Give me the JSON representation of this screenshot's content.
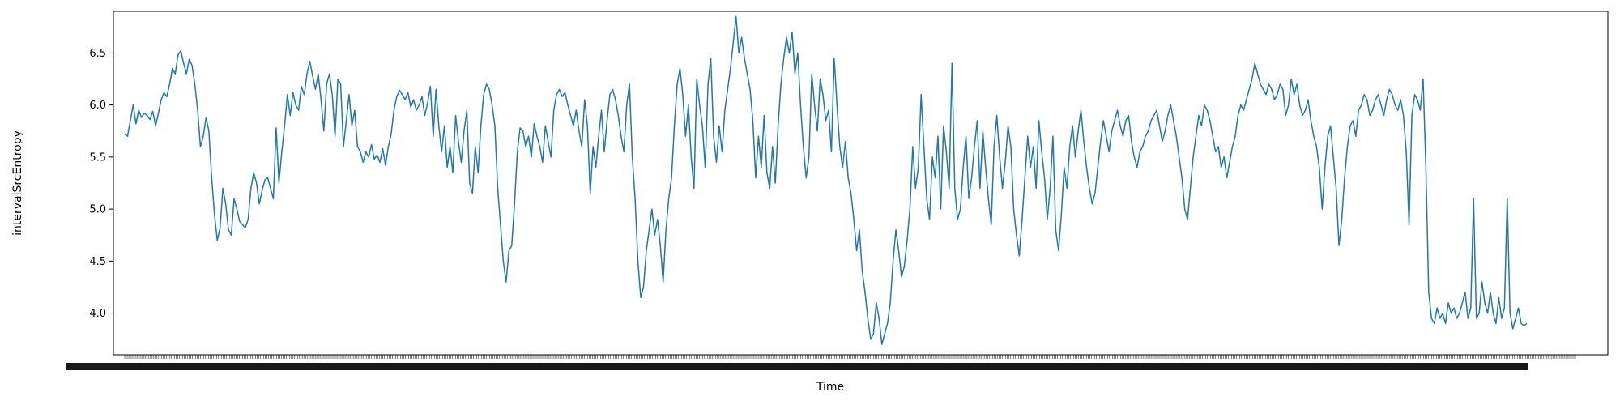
{
  "chart_data": {
    "type": "line",
    "title": "",
    "xlabel": "Time",
    "ylabel": "intervalSrcEntropy",
    "ylim": [
      3.6,
      6.9
    ],
    "yticks": [
      4.0,
      4.5,
      5.0,
      5.5,
      6.0,
      6.5
    ],
    "ytick_labels": [
      "4.0",
      "4.5",
      "5.0",
      "5.5",
      "6.0",
      "6.5"
    ],
    "x_tick_count": 900,
    "grid": false,
    "legend": "none",
    "series_color": "#1f77b4",
    "series": [
      {
        "values": [
          5.72,
          5.7,
          5.85,
          6.0,
          5.82,
          5.95,
          5.88,
          5.92,
          5.9,
          5.86,
          5.94,
          5.8,
          5.92,
          6.05,
          6.12,
          6.08,
          6.2,
          6.35,
          6.3,
          6.48,
          6.52,
          6.4,
          6.3,
          6.44,
          6.38,
          6.2,
          5.95,
          5.6,
          5.7,
          5.88,
          5.75,
          5.3,
          4.95,
          4.7,
          4.82,
          5.2,
          5.05,
          4.8,
          4.75,
          5.1,
          5.0,
          4.88,
          4.85,
          4.82,
          4.9,
          5.2,
          5.35,
          5.25,
          5.05,
          5.18,
          5.28,
          5.3,
          5.2,
          5.1,
          5.78,
          5.25,
          5.55,
          5.8,
          6.1,
          5.9,
          6.12,
          6.0,
          5.95,
          6.18,
          6.1,
          6.3,
          6.42,
          6.28,
          6.15,
          6.3,
          6.05,
          5.75,
          6.2,
          6.3,
          6.1,
          5.7,
          6.25,
          6.2,
          5.6,
          5.85,
          6.1,
          5.8,
          5.95,
          5.6,
          5.55,
          5.45,
          5.55,
          5.5,
          5.62,
          5.48,
          5.52,
          5.45,
          5.58,
          5.42,
          5.6,
          5.72,
          5.95,
          6.08,
          6.14,
          6.1,
          6.05,
          6.12,
          5.98,
          6.05,
          5.95,
          6.0,
          6.08,
          5.9,
          6.02,
          6.18,
          5.7,
          6.15,
          5.8,
          5.55,
          5.8,
          5.4,
          5.6,
          5.35,
          5.9,
          5.65,
          5.45,
          5.75,
          5.95,
          5.25,
          5.15,
          5.6,
          5.35,
          5.8,
          6.1,
          6.2,
          6.15,
          6.0,
          5.8,
          5.2,
          4.85,
          4.5,
          4.3,
          4.6,
          4.65,
          5.05,
          5.55,
          5.78,
          5.75,
          5.6,
          5.7,
          5.5,
          5.82,
          5.7,
          5.6,
          5.45,
          5.8,
          5.65,
          5.5,
          5.95,
          6.1,
          6.15,
          6.08,
          6.12,
          6.0,
          5.9,
          5.8,
          5.95,
          5.75,
          5.6,
          6.05,
          5.8,
          5.15,
          5.6,
          5.4,
          5.7,
          5.95,
          5.55,
          5.85,
          6.1,
          6.15,
          6.05,
          5.9,
          5.7,
          5.55,
          6.0,
          6.2,
          5.5,
          5.1,
          4.5,
          4.15,
          4.25,
          4.6,
          4.8,
          5.0,
          4.75,
          4.9,
          4.65,
          4.3,
          4.8,
          5.1,
          5.3,
          5.8,
          6.2,
          6.35,
          6.1,
          5.7,
          6.0,
          5.5,
          5.2,
          6.25,
          6.0,
          5.8,
          5.4,
          6.2,
          6.45,
          5.7,
          5.45,
          5.8,
          5.55,
          5.95,
          6.15,
          6.35,
          6.6,
          6.85,
          6.5,
          6.65,
          6.45,
          6.3,
          6.15,
          5.85,
          5.3,
          5.7,
          5.4,
          5.9,
          5.35,
          5.2,
          5.6,
          5.25,
          5.8,
          6.2,
          6.45,
          6.65,
          6.5,
          6.7,
          6.3,
          6.5,
          6.0,
          5.6,
          5.3,
          5.5,
          6.3,
          6.0,
          5.75,
          6.25,
          6.1,
          5.85,
          5.95,
          5.55,
          6.45,
          6.0,
          5.6,
          5.4,
          5.65,
          5.3,
          5.15,
          4.9,
          4.6,
          4.8,
          4.4,
          4.2,
          3.95,
          3.75,
          3.8,
          4.1,
          3.95,
          3.7,
          3.8,
          3.9,
          4.1,
          4.5,
          4.8,
          4.6,
          4.35,
          4.45,
          4.7,
          5.0,
          5.6,
          5.2,
          5.4,
          6.1,
          5.6,
          5.1,
          4.9,
          5.5,
          5.3,
          5.7,
          5.0,
          5.8,
          5.55,
          5.2,
          6.4,
          5.2,
          4.9,
          5.0,
          5.4,
          5.7,
          5.1,
          5.3,
          5.6,
          5.85,
          5.2,
          5.75,
          5.4,
          5.1,
          4.85,
          5.6,
          5.9,
          5.5,
          5.2,
          5.45,
          5.8,
          5.6,
          5.0,
          4.75,
          4.55,
          4.9,
          5.3,
          5.7,
          5.4,
          5.6,
          5.2,
          5.85,
          5.55,
          5.3,
          4.9,
          5.2,
          5.7,
          4.8,
          4.6,
          4.95,
          5.4,
          5.2,
          5.6,
          5.8,
          5.5,
          5.75,
          5.95,
          5.65,
          5.4,
          5.2,
          5.05,
          5.15,
          5.4,
          5.65,
          5.85,
          5.7,
          5.55,
          5.75,
          5.85,
          5.95,
          5.8,
          5.7,
          5.85,
          5.9,
          5.65,
          5.5,
          5.4,
          5.55,
          5.6,
          5.7,
          5.75,
          5.85,
          5.9,
          5.95,
          5.8,
          5.65,
          5.75,
          5.9,
          6.0,
          5.85,
          5.7,
          5.5,
          5.3,
          5.0,
          4.9,
          5.2,
          5.5,
          5.7,
          5.9,
          5.8,
          6.0,
          5.95,
          5.85,
          5.7,
          5.55,
          5.6,
          5.4,
          5.5,
          5.3,
          5.45,
          5.6,
          5.7,
          5.9,
          6.0,
          5.95,
          6.05,
          6.15,
          6.25,
          6.4,
          6.3,
          6.2,
          6.15,
          6.1,
          6.2,
          6.15,
          6.05,
          6.1,
          6.2,
          6.15,
          5.9,
          6.0,
          6.25,
          6.1,
          6.2,
          6.0,
          5.9,
          5.95,
          6.05,
          5.85,
          5.7,
          5.6,
          5.4,
          5.0,
          5.4,
          5.7,
          5.8,
          5.5,
          5.2,
          4.65,
          4.9,
          5.3,
          5.6,
          5.8,
          5.85,
          5.7,
          5.95,
          6.0,
          6.1,
          6.05,
          5.9,
          5.95,
          6.05,
          6.1,
          6.0,
          5.9,
          6.05,
          6.15,
          6.1,
          6.0,
          5.95,
          6.05,
          5.9,
          5.55,
          4.85,
          5.9,
          6.1,
          6.05,
          5.95,
          6.25,
          5.4,
          4.2,
          3.95,
          3.9,
          4.05,
          3.95,
          4.0,
          3.9,
          4.1,
          4.0,
          4.05,
          3.95,
          4.0,
          4.1,
          4.2,
          3.95,
          4.05,
          5.1,
          3.95,
          4.0,
          4.3,
          4.1,
          4.0,
          4.2,
          4.0,
          3.9,
          4.15,
          3.95,
          4.05,
          5.1,
          4.0,
          3.85,
          3.95,
          4.05,
          3.9,
          3.88,
          3.9
        ]
      }
    ]
  }
}
